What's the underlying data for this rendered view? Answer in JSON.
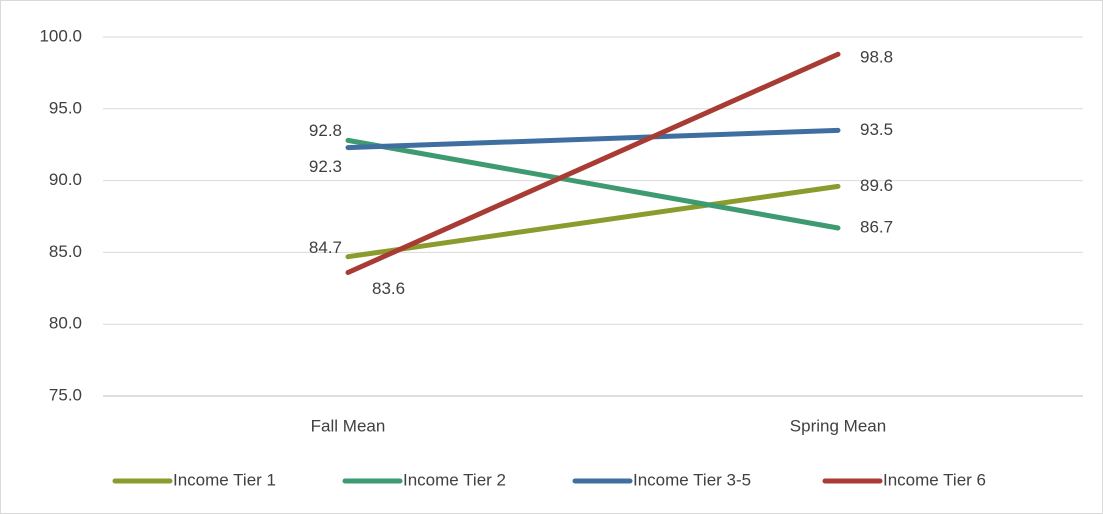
{
  "chart_data": {
    "type": "line",
    "categories": [
      "Fall Mean",
      "Spring Mean"
    ],
    "series": [
      {
        "name": "Income Tier 1",
        "color": "#8b9b2d",
        "values": [
          84.7,
          89.6
        ]
      },
      {
        "name": "Income Tier 2",
        "color": "#3e9a71",
        "values": [
          92.8,
          86.7
        ]
      },
      {
        "name": "Income Tier 3-5",
        "color": "#3f6fa1",
        "values": [
          92.3,
          93.5
        ]
      },
      {
        "name": "Income Tier 6",
        "color": "#a83b33",
        "values": [
          83.6,
          98.8
        ]
      }
    ],
    "ylim": [
      75,
      100
    ],
    "yticks": [
      {
        "value": 75,
        "label": "75.0"
      },
      {
        "value": 80,
        "label": "80.0"
      },
      {
        "value": 85,
        "label": "85.0"
      },
      {
        "value": 90,
        "label": "90.0"
      },
      {
        "value": 95,
        "label": "95.0"
      },
      {
        "value": 100,
        "label": "100.0"
      }
    ],
    "grid": true,
    "legend": "bottom"
  }
}
